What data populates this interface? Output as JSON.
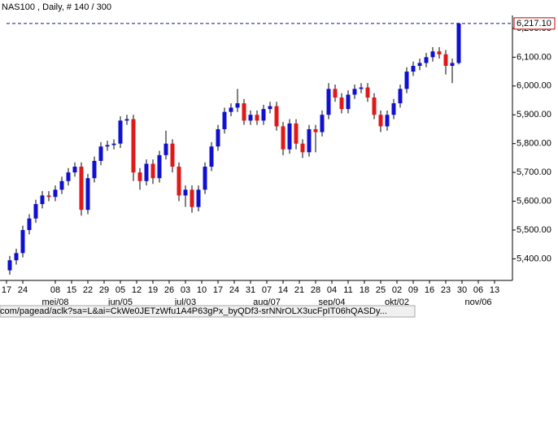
{
  "chart_data": {
    "type": "candlestick",
    "title": "NAS100 , Daily, # 140 / 300",
    "x": [
      1,
      3,
      5,
      7,
      9,
      11,
      13,
      15,
      17,
      19,
      21,
      23,
      25,
      27,
      29,
      31,
      33,
      35,
      37,
      39,
      41,
      43,
      45,
      47,
      49,
      51,
      53,
      55,
      57,
      59,
      61,
      63,
      65,
      67,
      69,
      71,
      73,
      75,
      77,
      79,
      81,
      83,
      85,
      87,
      89,
      91,
      93,
      95,
      97,
      99,
      101,
      103,
      105,
      107,
      109,
      111,
      113,
      115,
      117,
      119,
      121,
      123,
      125,
      127,
      129,
      131,
      133,
      135,
      137,
      139
    ],
    "open": [
      5360,
      5395,
      5420,
      5500,
      5540,
      5590,
      5620,
      5615,
      5640,
      5670,
      5700,
      5720,
      5570,
      5680,
      5740,
      5790,
      5795,
      5800,
      5880,
      5885,
      5700,
      5670,
      5730,
      5680,
      5760,
      5800,
      5720,
      5620,
      5640,
      5580,
      5640,
      5720,
      5790,
      5850,
      5910,
      5925,
      5940,
      5880,
      5900,
      5880,
      5920,
      5930,
      5860,
      5780,
      5870,
      5800,
      5770,
      5850,
      5840,
      5900,
      5990,
      5960,
      5920,
      5970,
      5990,
      5995,
      5960,
      5900,
      5860,
      5900,
      5940,
      5990,
      6050,
      6070,
      6080,
      6100,
      6120,
      6110,
      6070,
      6080
    ],
    "high": [
      5410,
      5435,
      5515,
      5555,
      5605,
      5635,
      5635,
      5655,
      5685,
      5715,
      5735,
      5735,
      5695,
      5755,
      5805,
      5810,
      5815,
      5895,
      5900,
      5900,
      5715,
      5745,
      5745,
      5775,
      5845,
      5815,
      5735,
      5655,
      5655,
      5655,
      5735,
      5805,
      5865,
      5925,
      5940,
      5990,
      5955,
      5915,
      5915,
      5935,
      5945,
      5945,
      5875,
      5885,
      5885,
      5815,
      5865,
      5865,
      5915,
      6010,
      6005,
      5975,
      5985,
      6005,
      6010,
      6010,
      5975,
      5915,
      5915,
      5955,
      6005,
      6065,
      6085,
      6095,
      6115,
      6135,
      6135,
      6125,
      6095,
      6220
    ],
    "low": [
      5345,
      5380,
      5405,
      5485,
      5525,
      5575,
      5600,
      5600,
      5625,
      5655,
      5685,
      5550,
      5555,
      5665,
      5725,
      5775,
      5780,
      5785,
      5865,
      5670,
      5640,
      5655,
      5660,
      5665,
      5745,
      5700,
      5600,
      5580,
      5560,
      5565,
      5625,
      5705,
      5775,
      5835,
      5895,
      5910,
      5865,
      5865,
      5865,
      5865,
      5905,
      5845,
      5760,
      5765,
      5780,
      5750,
      5755,
      5770,
      5825,
      5885,
      5945,
      5905,
      5905,
      5955,
      5975,
      5945,
      5885,
      5840,
      5845,
      5885,
      5925,
      5975,
      6035,
      6055,
      6065,
      6085,
      6095,
      6040,
      6010,
      6075
    ],
    "close": [
      5395,
      5420,
      5500,
      5540,
      5590,
      5620,
      5615,
      5640,
      5670,
      5700,
      5720,
      5570,
      5680,
      5740,
      5790,
      5795,
      5800,
      5880,
      5885,
      5700,
      5670,
      5730,
      5680,
      5760,
      5800,
      5720,
      5620,
      5640,
      5580,
      5640,
      5720,
      5790,
      5850,
      5910,
      5925,
      5940,
      5880,
      5900,
      5880,
      5920,
      5930,
      5860,
      5780,
      5870,
      5800,
      5770,
      5850,
      5840,
      5900,
      5990,
      5960,
      5920,
      5970,
      5990,
      5995,
      5960,
      5900,
      5860,
      5900,
      5940,
      5990,
      6050,
      6070,
      6080,
      6100,
      6120,
      6110,
      6070,
      6080,
      6217
    ],
    "up_color": "#1010d0",
    "down_color": "#e01818",
    "xlim": [
      -2,
      155.5
    ],
    "ylim": [
      5325,
      6245
    ],
    "xticks": [
      {
        "value": 0,
        "label": "17"
      },
      {
        "value": 5,
        "label": "24"
      },
      {
        "value": 15,
        "label": "08"
      },
      {
        "value": 20,
        "label": "15"
      },
      {
        "value": 25,
        "label": "22"
      },
      {
        "value": 30,
        "label": "29"
      },
      {
        "value": 35,
        "label": "05"
      },
      {
        "value": 40,
        "label": "12"
      },
      {
        "value": 45,
        "label": "19"
      },
      {
        "value": 50,
        "label": "26"
      },
      {
        "value": 55,
        "label": "03"
      },
      {
        "value": 60,
        "label": "10"
      },
      {
        "value": 65,
        "label": "17"
      },
      {
        "value": 70,
        "label": "24"
      },
      {
        "value": 75,
        "label": "31"
      },
      {
        "value": 80,
        "label": "07"
      },
      {
        "value": 85,
        "label": "14"
      },
      {
        "value": 90,
        "label": "21"
      },
      {
        "value": 95,
        "label": "28"
      },
      {
        "value": 100,
        "label": "04"
      },
      {
        "value": 105,
        "label": "11"
      },
      {
        "value": 110,
        "label": "18"
      },
      {
        "value": 115,
        "label": "25"
      },
      {
        "value": 120,
        "label": "02"
      },
      {
        "value": 125,
        "label": "09"
      },
      {
        "value": 130,
        "label": "16"
      },
      {
        "value": 135,
        "label": "23"
      },
      {
        "value": 140,
        "label": "30"
      },
      {
        "value": 145,
        "label": "06"
      },
      {
        "value": 150,
        "label": "13"
      }
    ],
    "month_labels": [
      {
        "value": 15,
        "label": "mei/08"
      },
      {
        "value": 35,
        "label": "jun/05"
      },
      {
        "value": 55,
        "label": "jul/03"
      },
      {
        "value": 80,
        "label": "aug/07"
      },
      {
        "value": 100,
        "label": "sep/04"
      },
      {
        "value": 120,
        "label": "okt/02"
      },
      {
        "value": 145,
        "label": "nov/06"
      }
    ],
    "yticks": [
      {
        "value": 5400,
        "label": "5,400.00"
      },
      {
        "value": 5500,
        "label": "5,500.00"
      },
      {
        "value": 5600,
        "label": "5,600.00"
      },
      {
        "value": 5700,
        "label": "5,700.00"
      },
      {
        "value": 5800,
        "label": "5,800.00"
      },
      {
        "value": 5900,
        "label": "5,900.00"
      },
      {
        "value": 6000,
        "label": "6,000.00"
      },
      {
        "value": 6100,
        "label": "6,100.00"
      },
      {
        "value": 6200,
        "label": "6,200.00"
      }
    ],
    "last_price": {
      "value": 6217.1,
      "label": "6,217.10"
    }
  },
  "status_bar": "com/pagead/aclk?sa=L&ai=CkWe0JETzWfu1A4P63gPx_byQDf3-srNNrOLX3ucFpIT06hQASDy..."
}
